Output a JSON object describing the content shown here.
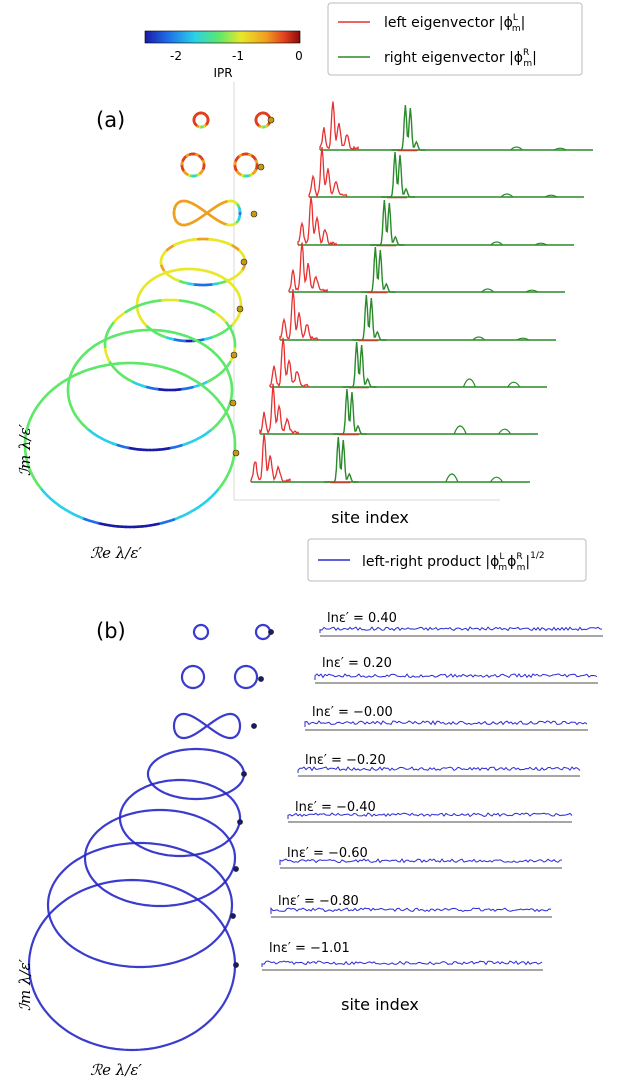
{
  "chart_data": [
    {
      "panel": "(a)",
      "type": "line",
      "colorbar": {
        "label": "IPR",
        "ticks": [
          "-2",
          "-1",
          "0"
        ],
        "colormap": [
          "#1a1aa8",
          "#1f6fe8",
          "#2ad0e8",
          "#5ee86a",
          "#e8e82a",
          "#f0a020",
          "#e04020",
          "#8a0a0a"
        ]
      },
      "legend": {
        "position": "top-right",
        "entries": [
          {
            "label": "left eigenvector |ϕᵐᴸ|",
            "text": "left eigenvector",
            "sym": "|ϕ",
            "sub": "m",
            "sup": "L",
            "color": "#e83030"
          },
          {
            "label": "right eigenvector |ϕᵐᴿ|",
            "text": "right eigenvector",
            "sym": "|ϕ",
            "sub": "m",
            "sup": "R",
            "color": "#2a8a2a"
          }
        ]
      },
      "xlabel": "site index",
      "ylabel": "ℐm λ/ε′",
      "spectrum_xlabel": "ℛe λ/ε′",
      "ln_eps": [
        0.4,
        0.2,
        -0.0,
        -0.2,
        -0.4,
        -0.6,
        -0.8,
        -1.01
      ],
      "series": [
        {
          "ln_eps": 0.4,
          "left_peak_site": 0.04,
          "right_peak_site": 0.32
        },
        {
          "ln_eps": 0.2,
          "left_peak_site": 0.04,
          "right_peak_site": 0.32
        },
        {
          "ln_eps": -0.0,
          "left_peak_site": 0.04,
          "right_peak_site": 0.32
        },
        {
          "ln_eps": -0.2,
          "left_peak_site": 0.04,
          "right_peak_site": 0.32
        },
        {
          "ln_eps": -0.4,
          "left_peak_site": 0.04,
          "right_peak_site": 0.32
        },
        {
          "ln_eps": -0.6,
          "left_peak_site": 0.04,
          "right_peak_site": 0.32
        },
        {
          "ln_eps": -0.8,
          "left_peak_site": 0.04,
          "right_peak_site": 0.32
        },
        {
          "ln_eps": -1.01,
          "left_peak_site": 0.04,
          "right_peak_site": 0.32
        }
      ]
    },
    {
      "panel": "(b)",
      "type": "line",
      "legend": {
        "position": "top-right",
        "entries": [
          {
            "label": "left-right product |ϕᵐᴸϕᵐᴿ|¹ᐟ²",
            "text": "left-right product",
            "color": "#2a2ad8"
          }
        ]
      },
      "xlabel": "site index",
      "ylabel": "ℐm λ/ε′",
      "spectrum_xlabel": "ℛe λ/ε′",
      "ln_eps_labels": [
        "lnε′ = 0.40",
        "lnε′ = 0.20",
        "lnε′ = −0.00",
        "lnε′ = −0.20",
        "lnε′ = −0.40",
        "lnε′ = −0.60",
        "lnε′ = −0.80",
        "lnε′ = −1.01"
      ]
    }
  ]
}
